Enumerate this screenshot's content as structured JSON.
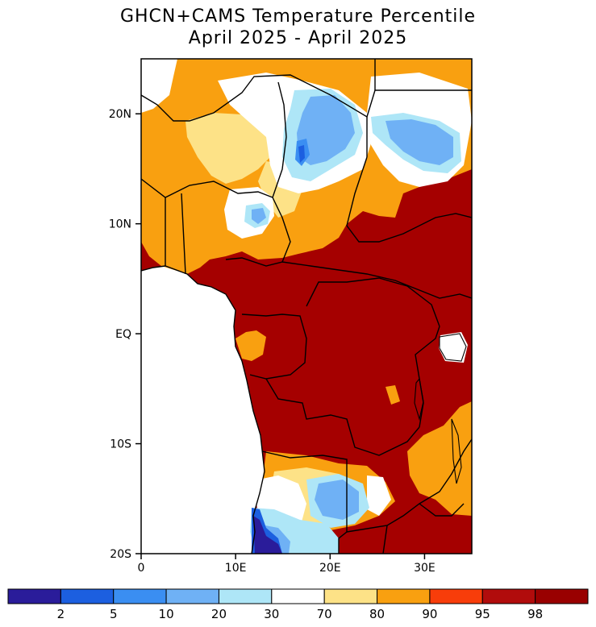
{
  "title": {
    "line1": "GHCN+CAMS Temperature Percentile",
    "line2": "April 2025 - April 2025"
  },
  "map": {
    "lon_range": [
      0,
      35
    ],
    "lat_range": [
      -20,
      25
    ],
    "lat_ticks": [
      {
        "value": 20,
        "label": "20N"
      },
      {
        "value": 10,
        "label": "10N"
      },
      {
        "value": 0,
        "label": "EQ"
      },
      {
        "value": -10,
        "label": "10S"
      },
      {
        "value": -20,
        "label": "20S"
      }
    ],
    "lon_ticks": [
      {
        "value": 0,
        "label": "0"
      },
      {
        "value": 10,
        "label": "10E"
      },
      {
        "value": 20,
        "label": "20E"
      },
      {
        "value": 30,
        "label": "30E"
      }
    ]
  },
  "colorbar": {
    "colors": [
      "#2a1c9a",
      "#1c5fe0",
      "#3a8ef2",
      "#6fb1f5",
      "#aee6f7",
      "#ffffff",
      "#fde287",
      "#f9a010",
      "#f83d0a",
      "#b10c0c",
      "#990000"
    ],
    "labels": [
      "2",
      "5",
      "10",
      "20",
      "30",
      "70",
      "80",
      "90",
      "95",
      "98"
    ]
  },
  "colors": {
    "ocean": "#ffffff",
    "land_default": "#a50000",
    "border": "#000000"
  }
}
